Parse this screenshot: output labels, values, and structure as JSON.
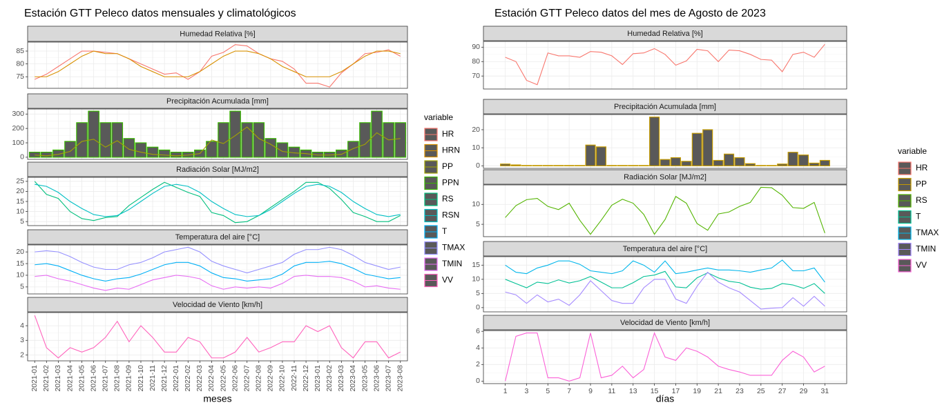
{
  "chart_data": [
    {
      "type": "facet",
      "title": "Estación GTT Peleco datos mensuales y climatológicos",
      "x_label": "meses",
      "legend_title": "variable",
      "categories": [
        "2021-01",
        "2021-02",
        "2021-03",
        "2021-04",
        "2021-05",
        "2021-06",
        "2021-07",
        "2021-08",
        "2021-09",
        "2021-10",
        "2021-11",
        "2021-12",
        "2022-01",
        "2022-02",
        "2022-03",
        "2022-04",
        "2022-05",
        "2022-06",
        "2022-07",
        "2022-08",
        "2022-09",
        "2022-10",
        "2022-11",
        "2022-12",
        "2023-01",
        "2023-02",
        "2023-03",
        "2023-04",
        "2023-05",
        "2023-06",
        "2023-07",
        "2023-08"
      ],
      "panels": [
        {
          "title": "Humedad Relativa [%]",
          "ylim": [
            70.5,
            88.5
          ],
          "yticks": [
            75,
            80,
            85
          ],
          "series": [
            {
              "name": "HR",
              "type": "line",
              "color": "#F8766D",
              "values": [
                74,
                76,
                79,
                82,
                85,
                85,
                84.5,
                84,
                82,
                80,
                78,
                76,
                76.5,
                74,
                77,
                83,
                84.5,
                87.5,
                87,
                84,
                82,
                81,
                78,
                72.5,
                72.5,
                71,
                76.5,
                80,
                84,
                84.5,
                85.5,
                83
              ]
            },
            {
              "name": "HRN",
              "type": "line",
              "color": "#D89000",
              "values": [
                75,
                75,
                77,
                80,
                83,
                85,
                84,
                84,
                82,
                79,
                77,
                75,
                75,
                75,
                77,
                80,
                83,
                85,
                85,
                84,
                82,
                79,
                77,
                75,
                75,
                75,
                77,
                80,
                83,
                85,
                85,
                84
              ]
            }
          ]
        },
        {
          "title": "Precipitación Acumulada [mm]",
          "ylim": [
            -15,
            335
          ],
          "yticks": [
            0,
            100,
            200,
            300
          ],
          "series": [
            {
              "name": "PP",
              "type": "line",
              "color": "#A3A500",
              "values": [
                15,
                10,
                20,
                40,
                110,
                125,
                70,
                115,
                55,
                35,
                20,
                15,
                10,
                15,
                25,
                120,
                95,
                150,
                210,
                130,
                90,
                40,
                30,
                25,
                15,
                15,
                20,
                60,
                90,
                170,
                120,
                130
              ]
            },
            {
              "name": "PPN",
              "type": "bar",
              "color": "#39B600",
              "values": [
                35,
                35,
                50,
                110,
                240,
                320,
                240,
                240,
                130,
                100,
                70,
                50,
                35,
                35,
                50,
                110,
                240,
                320,
                240,
                240,
                130,
                100,
                70,
                50,
                35,
                35,
                50,
                110,
                240,
                320,
                240,
                240
              ]
            }
          ]
        },
        {
          "title": "Radiación Solar [MJ/m2]",
          "ylim": [
            3,
            27
          ],
          "yticks": [
            5,
            10,
            15,
            20,
            25
          ],
          "series": [
            {
              "name": "RS",
              "type": "line",
              "color": "#00BF7D",
              "values": [
                25,
                18.5,
                16.5,
                10,
                6.5,
                5.5,
                7,
                7.5,
                13,
                17,
                21,
                24.5,
                22,
                19.5,
                17.5,
                9.5,
                8,
                4.5,
                5,
                8,
                12,
                16,
                20,
                24.5,
                24.5,
                21.5,
                16,
                9.5,
                7.5,
                5,
                5,
                8
              ]
            },
            {
              "name": "RSN",
              "type": "line",
              "color": "#00BFC4",
              "values": [
                23.5,
                22.5,
                19.5,
                15,
                11.5,
                8.5,
                7.5,
                8,
                11,
                15,
                19,
                22.5,
                23.5,
                22.5,
                19.5,
                15,
                11.5,
                8.5,
                7.5,
                8,
                11,
                15,
                19,
                22.5,
                23.5,
                22.5,
                19.5,
                15,
                11.5,
                8.5,
                7.5,
                8.5
              ]
            }
          ]
        },
        {
          "title": "Temperatura del aire [°C]",
          "ylim": [
            2,
            23
          ],
          "yticks": [
            5,
            10,
            15,
            20
          ],
          "series": [
            {
              "name": "T",
              "type": "line",
              "color": "#00B0F6",
              "values": [
                14.5,
                15,
                14,
                12,
                10,
                8.5,
                7.5,
                8.5,
                9,
                10.5,
                12.5,
                14.5,
                15.5,
                15.5,
                14,
                11,
                9,
                8.5,
                7.5,
                8,
                8.5,
                10.5,
                14,
                15.5,
                15.5,
                16,
                15,
                13,
                10.5,
                9.5,
                8.5,
                9
              ]
            },
            {
              "name": "TMAX",
              "type": "line",
              "color": "#9590FF",
              "values": [
                20,
                20.5,
                20,
                18,
                15.5,
                13.5,
                12.5,
                12.5,
                14.5,
                15.5,
                17.5,
                20,
                21,
                22,
                20,
                16,
                14,
                12.5,
                11,
                12.5,
                14,
                15.5,
                19,
                21,
                21,
                22,
                21,
                18.5,
                15.5,
                14,
                12.5,
                13.5
              ]
            },
            {
              "name": "TMIN",
              "type": "line",
              "color": "#E76BF3",
              "values": [
                9.5,
                10,
                8.5,
                7.5,
                6,
                4.5,
                3.5,
                4.5,
                4,
                6,
                8,
                9,
                10,
                9.5,
                8.5,
                5.5,
                4,
                5,
                4.5,
                5,
                4.5,
                6.5,
                9.5,
                10,
                9.5,
                9.5,
                9,
                7.5,
                5,
                5.5,
                4.5,
                4
              ]
            }
          ]
        },
        {
          "title": "Velocidad de Viento [km/h]",
          "ylim": [
            1.6,
            4.9
          ],
          "yticks": [
            2,
            3,
            4
          ],
          "series": [
            {
              "name": "VV",
              "type": "line",
              "color": "#FF62BC",
              "values": [
                4.7,
                2.5,
                1.8,
                2.5,
                2.2,
                2.5,
                3.2,
                4.3,
                2.9,
                4,
                3.2,
                2.2,
                2.2,
                3.2,
                2.9,
                1.8,
                1.8,
                2.2,
                3.2,
                2.2,
                2.5,
                2.9,
                2.9,
                4,
                3.6,
                4,
                2.5,
                1.8,
                2.9,
                2.9,
                1.8,
                2.2
              ]
            }
          ]
        }
      ]
    },
    {
      "type": "facet",
      "title": "Estación GTT Peleco datos del mes de Agosto de 2023",
      "x_label": "días",
      "legend_title": "variable",
      "x": [
        1,
        2,
        3,
        4,
        5,
        6,
        7,
        8,
        9,
        10,
        11,
        12,
        13,
        14,
        15,
        16,
        17,
        18,
        19,
        20,
        21,
        22,
        23,
        24,
        25,
        26,
        27,
        28,
        29,
        30,
        31
      ],
      "xlim": [
        -1.05,
        33.05
      ],
      "xticks": [
        1,
        3,
        5,
        7,
        9,
        11,
        13,
        15,
        17,
        19,
        21,
        23,
        25,
        27,
        29,
        31
      ],
      "panels": [
        {
          "title": "Humedad Relativa [%]",
          "ylim": [
            61,
            94
          ],
          "yticks": [
            70,
            80,
            90
          ],
          "series": [
            {
              "name": "HR",
              "type": "line",
              "color": "#F8766D",
              "values": [
                83,
                80,
                67,
                64,
                86,
                84,
                84,
                83,
                87,
                86.5,
                84,
                78,
                85.5,
                86,
                89,
                85,
                77.5,
                80.5,
                88.5,
                87.5,
                80,
                88,
                87.5,
                85,
                81.5,
                81,
                73,
                85,
                86.5,
                83,
                92
              ]
            }
          ]
        },
        {
          "title": "Precipitación Acumulada [mm]",
          "ylim": [
            -1.4,
            28.4
          ],
          "yticks": [
            0,
            10,
            20
          ],
          "series": [
            {
              "name": "PP",
              "type": "bar",
              "color": "#C49A00",
              "values": [
                1,
                0.5,
                0.2,
                0.2,
                0.2,
                0.2,
                0.2,
                0.2,
                11.5,
                10.5,
                0.2,
                0.2,
                0.2,
                0.2,
                27,
                3.5,
                4.5,
                2.5,
                18,
                20,
                3,
                6.5,
                4.5,
                1.2,
                0.2,
                0.2,
                1,
                7.5,
                6,
                1.5,
                3
              ]
            }
          ]
        },
        {
          "title": "Radiación Solar [MJ/m2]",
          "ylim": [
            1.9,
            14.9
          ],
          "yticks": [
            5,
            10
          ],
          "series": [
            {
              "name": "RS",
              "type": "line",
              "color": "#53B400",
              "values": [
                6.7,
                9.7,
                11.2,
                11.5,
                9.5,
                8.7,
                10.3,
                6,
                2.5,
                6,
                9.8,
                11.3,
                10.3,
                7.5,
                2.5,
                6.2,
                12,
                10.3,
                5.2,
                3.5,
                7.6,
                8.1,
                9.5,
                10.5,
                14.3,
                14.2,
                12.3,
                9.2,
                9,
                10.5,
                2.8
              ]
            }
          ]
        },
        {
          "title": "Temperatura del aire [°C]",
          "ylim": [
            -1.5,
            18
          ],
          "yticks": [
            0,
            5,
            10,
            15
          ],
          "series": [
            {
              "name": "T",
              "type": "line",
              "color": "#00C094",
              "values": [
                10,
                8.5,
                7,
                9,
                8.5,
                9.8,
                8.7,
                9.5,
                11,
                9,
                7,
                7,
                8.8,
                11,
                11.5,
                12.8,
                7.3,
                7,
                10.5,
                12.3,
                10.5,
                9.3,
                8.8,
                7.2,
                6.5,
                6.8,
                8.5,
                8,
                6.8,
                8.5,
                5
              ]
            },
            {
              "name": "TMAX",
              "type": "line",
              "color": "#00B6EB",
              "values": [
                15,
                12.5,
                12,
                14,
                15,
                16.5,
                16.5,
                15.3,
                13,
                12.5,
                12,
                13,
                16.5,
                15,
                12.5,
                16.5,
                12,
                12.5,
                13.3,
                14,
                13.3,
                13.3,
                13,
                12.5,
                13.3,
                14,
                16.8,
                13,
                13,
                14,
                9
              ]
            },
            {
              "name": "TMIN",
              "type": "line",
              "color": "#A58AFF",
              "values": [
                5.5,
                4.5,
                1.5,
                4.5,
                2,
                3,
                0.8,
                4.5,
                9.5,
                6,
                2.5,
                1.5,
                1.5,
                7,
                10,
                10,
                3,
                1.5,
                7.5,
                12.5,
                9,
                7,
                5.5,
                2.5,
                -0.5,
                -0.2,
                0,
                3.5,
                0.5,
                4,
                0.5
              ]
            }
          ]
        },
        {
          "title": "Velocidad de Viento [km/h]",
          "ylim": [
            -0.3,
            6.1
          ],
          "yticks": [
            0,
            2,
            4,
            6
          ],
          "series": [
            {
              "name": "VV",
              "type": "line",
              "color": "#FB61D7",
              "values": [
                0,
                5.4,
                5.8,
                5.8,
                0.4,
                0.4,
                0,
                0.4,
                5.8,
                0.4,
                0.7,
                1.8,
                0.4,
                1.4,
                5.8,
                2.9,
                2.5,
                4,
                3.6,
                2.9,
                1.8,
                1.4,
                1.1,
                0.7,
                0.7,
                0.7,
                2.5,
                3.6,
                2.9,
                1.1,
                1.8
              ]
            }
          ]
        }
      ]
    }
  ]
}
